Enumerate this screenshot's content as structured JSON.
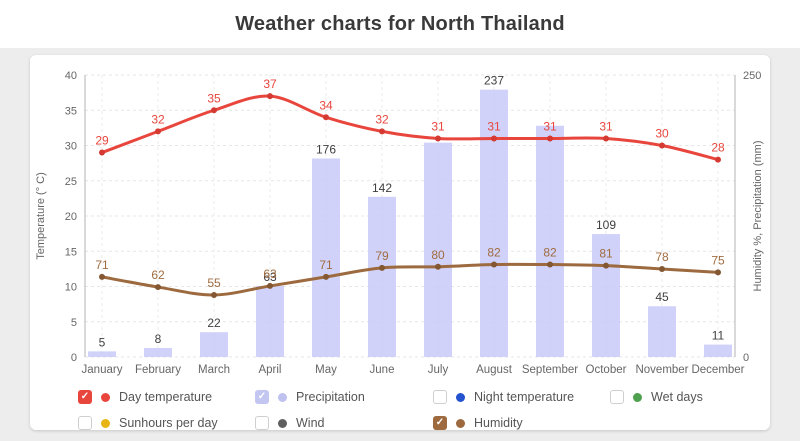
{
  "page": {
    "title": "Weather charts for North Thailand"
  },
  "chart_data": {
    "type": "mixed-bar-line",
    "categories": [
      "January",
      "February",
      "March",
      "April",
      "May",
      "June",
      "July",
      "August",
      "September",
      "October",
      "November",
      "December"
    ],
    "left_axis": {
      "title": "Temperature (° C)",
      "min": 0,
      "max": 40,
      "ticks": [
        0,
        5,
        10,
        15,
        20,
        25,
        30,
        35,
        40
      ],
      "grid": "dashed"
    },
    "right_axis": {
      "title": "Humidity %, Precipitation (mm)",
      "min": 0,
      "max": 250,
      "ticks": [
        0,
        250
      ]
    },
    "series": [
      {
        "name": "Precipitation",
        "type": "bar",
        "axis": "right",
        "color": "#c8caf8",
        "label_color": "#3f3f3f",
        "values": [
          5,
          8,
          22,
          63,
          176,
          142,
          190,
          237,
          205,
          109,
          45,
          11
        ],
        "labels": [
          "5",
          "8",
          "22",
          "63",
          "176",
          "142",
          "",
          "237",
          "",
          "109",
          "45",
          "11"
        ]
      },
      {
        "name": "Humidity",
        "type": "line",
        "axis": "right",
        "color": "#9c6a3e",
        "dot_color": "#835732",
        "label_color": "#a06c40",
        "values": [
          71,
          62,
          55,
          63,
          71,
          79,
          80,
          82,
          82,
          81,
          78,
          75
        ],
        "labels": [
          "71",
          "62",
          "55",
          "63",
          "71",
          "79",
          "80",
          "82",
          "82",
          "81",
          "78",
          "75"
        ]
      },
      {
        "name": "Day temperature",
        "type": "line",
        "axis": "left",
        "color": "#e8463d",
        "dot_color": "#d43a31",
        "label_color": "#e8463d",
        "values": [
          29,
          32,
          35,
          37,
          34,
          32,
          31,
          31,
          31,
          31,
          30,
          28
        ],
        "labels": [
          "29",
          "32",
          "35",
          "37",
          "34",
          "32",
          "31",
          "31",
          "31",
          "31",
          "30",
          "28"
        ]
      }
    ],
    "legend_position": "bottom"
  },
  "legend": {
    "rows": [
      [
        {
          "label": "Day temperature",
          "dot": "#e8463d",
          "box": "#e8463d",
          "checked": true
        },
        {
          "label": "Precipitation",
          "dot": "#bfc1f0",
          "box": "#c4c6f2",
          "checked": true
        },
        {
          "label": "Night temperature",
          "dot": "#2353cf",
          "box": null,
          "checked": false
        },
        {
          "label": "Wet days",
          "dot": "#4fa14f",
          "box": null,
          "checked": false
        }
      ],
      [
        {
          "label": "Sunhours per day",
          "dot": "#e7b513",
          "box": null,
          "checked": false
        },
        {
          "label": "Wind",
          "dot": "#5f5f5f",
          "box": null,
          "checked": false
        },
        {
          "label": "Humidity",
          "dot": "#9c6a3e",
          "box": "#9c6a3e",
          "checked": true
        }
      ]
    ],
    "check_glyph": "✓"
  }
}
